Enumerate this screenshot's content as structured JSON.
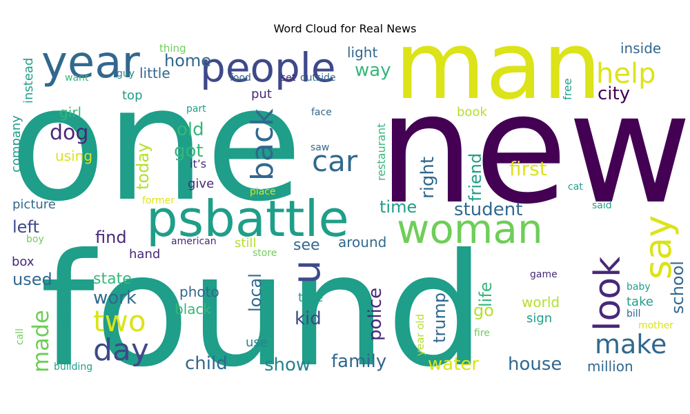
{
  "chart_data": {
    "type": "wordcloud",
    "title": "Word Cloud for Real News",
    "colors": {
      "purple_dark": "#440154",
      "purple": "#482878",
      "indigo": "#3e4989",
      "blue": "#31688e",
      "teal_blue": "#26828e",
      "teal": "#1f9e89",
      "green": "#35b779",
      "light_green": "#6ece58",
      "yellow_green": "#b5de2b",
      "yellow": "#dce319"
    },
    "words": [
      {
        "text": "one",
        "weight": 100,
        "color": "teal",
        "vertical": false
      },
      {
        "text": "found",
        "weight": 95,
        "color": "teal",
        "vertical": false
      },
      {
        "text": "new",
        "weight": 90,
        "color": "purple_dark",
        "vertical": false
      },
      {
        "text": "man",
        "weight": 85,
        "color": "yellow",
        "vertical": false
      },
      {
        "text": "psbattle",
        "weight": 55,
        "color": "teal",
        "vertical": false
      },
      {
        "text": "people",
        "weight": 45,
        "color": "indigo",
        "vertical": false
      },
      {
        "text": "year",
        "weight": 45,
        "color": "blue",
        "vertical": false
      },
      {
        "text": "woman",
        "weight": 42,
        "color": "light_green",
        "vertical": false
      },
      {
        "text": "u",
        "weight": 40,
        "color": "indigo",
        "vertical": true
      },
      {
        "text": "say",
        "weight": 40,
        "color": "yellow",
        "vertical": true
      },
      {
        "text": "look",
        "weight": 38,
        "color": "purple",
        "vertical": true
      },
      {
        "text": "back",
        "weight": 35,
        "color": "blue",
        "vertical": true
      },
      {
        "text": "day",
        "weight": 34,
        "color": "indigo",
        "vertical": false
      },
      {
        "text": "help",
        "weight": 33,
        "color": "yellow",
        "vertical": false
      },
      {
        "text": "two",
        "weight": 32,
        "color": "yellow",
        "vertical": false
      },
      {
        "text": "make",
        "weight": 32,
        "color": "blue",
        "vertical": false
      },
      {
        "text": "car",
        "weight": 30,
        "color": "blue",
        "vertical": false
      },
      {
        "text": "made",
        "weight": 28,
        "color": "light_green",
        "vertical": true
      },
      {
        "text": "dog",
        "weight": 25,
        "color": "purple",
        "vertical": false
      },
      {
        "text": "city",
        "weight": 22,
        "color": "purple_dark",
        "vertical": false
      },
      {
        "text": "school",
        "weight": 20,
        "color": "blue",
        "vertical": true
      },
      {
        "text": "first",
        "weight": 20,
        "color": "yellow",
        "vertical": false
      },
      {
        "text": "family",
        "weight": 20,
        "color": "blue",
        "vertical": false
      },
      {
        "text": "police",
        "weight": 20,
        "color": "purple",
        "vertical": true
      },
      {
        "text": "work",
        "weight": 20,
        "color": "blue",
        "vertical": false
      },
      {
        "text": "child",
        "weight": 20,
        "color": "blue",
        "vertical": false
      },
      {
        "text": "house",
        "weight": 20,
        "color": "blue",
        "vertical": false
      },
      {
        "text": "local",
        "weight": 20,
        "color": "blue",
        "vertical": true
      },
      {
        "text": "old",
        "weight": 20,
        "color": "green",
        "vertical": false
      },
      {
        "text": "home",
        "weight": 20,
        "color": "blue",
        "vertical": false
      },
      {
        "text": "way",
        "weight": 20,
        "color": "green",
        "vertical": false
      },
      {
        "text": "got",
        "weight": 20,
        "color": "green",
        "vertical": false
      },
      {
        "text": "student",
        "weight": 20,
        "color": "blue",
        "vertical": false
      },
      {
        "text": "water",
        "weight": 20,
        "color": "yellow",
        "vertical": false
      },
      {
        "text": "show",
        "weight": 20,
        "color": "teal_blue",
        "vertical": false
      },
      {
        "text": "kid",
        "weight": 20,
        "color": "indigo",
        "vertical": false
      },
      {
        "text": "life",
        "weight": 20,
        "color": "green",
        "vertical": true
      },
      {
        "text": "right",
        "weight": 20,
        "color": "blue",
        "vertical": true
      },
      {
        "text": "friend",
        "weight": 20,
        "color": "teal",
        "vertical": true
      },
      {
        "text": "time",
        "weight": 20,
        "color": "teal",
        "vertical": false
      },
      {
        "text": "today",
        "weight": 18,
        "color": "yellow_green",
        "vertical": true
      },
      {
        "text": "find",
        "weight": 18,
        "color": "purple",
        "vertical": false
      },
      {
        "text": "left",
        "weight": 18,
        "color": "indigo",
        "vertical": false
      },
      {
        "text": "used",
        "weight": 18,
        "color": "blue",
        "vertical": false
      },
      {
        "text": "state",
        "weight": 18,
        "color": "green",
        "vertical": false
      },
      {
        "text": "see",
        "weight": 18,
        "color": "blue",
        "vertical": false
      },
      {
        "text": "trump",
        "weight": 18,
        "color": "blue",
        "vertical": true
      },
      {
        "text": "go",
        "weight": 18,
        "color": "yellow_green",
        "vertical": false
      },
      {
        "text": "world",
        "weight": 16,
        "color": "yellow_green",
        "vertical": false
      },
      {
        "text": "light",
        "weight": 16,
        "color": "blue",
        "vertical": false
      },
      {
        "text": "little",
        "weight": 16,
        "color": "blue",
        "vertical": false
      },
      {
        "text": "photo",
        "weight": 16,
        "color": "blue",
        "vertical": false
      },
      {
        "text": "black",
        "weight": 16,
        "color": "green",
        "vertical": false
      },
      {
        "text": "around",
        "weight": 16,
        "color": "blue",
        "vertical": false
      },
      {
        "text": "million",
        "weight": 16,
        "color": "blue",
        "vertical": false
      },
      {
        "text": "inside",
        "weight": 16,
        "color": "blue",
        "vertical": false
      },
      {
        "text": "girl",
        "weight": 14,
        "color": "green",
        "vertical": false
      },
      {
        "text": "picture",
        "weight": 14,
        "color": "blue",
        "vertical": false
      },
      {
        "text": "box",
        "weight": 14,
        "color": "purple",
        "vertical": false
      },
      {
        "text": "top",
        "weight": 14,
        "color": "teal",
        "vertical": false
      },
      {
        "text": "book",
        "weight": 14,
        "color": "yellow_green",
        "vertical": false
      },
      {
        "text": "put",
        "weight": 14,
        "color": "purple",
        "vertical": false
      },
      {
        "text": "using",
        "weight": 14,
        "color": "yellow",
        "vertical": false
      },
      {
        "text": "give",
        "weight": 14,
        "color": "purple",
        "vertical": false
      },
      {
        "text": "still",
        "weight": 14,
        "color": "yellow_green",
        "vertical": false
      },
      {
        "text": "hand",
        "weight": 14,
        "color": "purple",
        "vertical": false
      },
      {
        "text": "sign",
        "weight": 14,
        "color": "teal",
        "vertical": false
      },
      {
        "text": "take",
        "weight": 14,
        "color": "teal",
        "vertical": false
      },
      {
        "text": "company",
        "weight": 14,
        "color": "teal",
        "vertical": true
      },
      {
        "text": "instead",
        "weight": 14,
        "color": "teal",
        "vertical": true
      },
      {
        "text": "restaurant",
        "weight": 14,
        "color": "green",
        "vertical": true
      },
      {
        "text": "tree",
        "weight": 14,
        "color": "teal",
        "vertical": false
      },
      {
        "text": "use",
        "weight": 14,
        "color": "teal_blue",
        "vertical": false
      },
      {
        "text": "yearold",
        "weight": 13,
        "color": "teal",
        "vertical": true
      },
      {
        "text": "year old",
        "weight": 13,
        "color": "yellow_green",
        "vertical": true
      },
      {
        "text": "free",
        "weight": 13,
        "color": "teal",
        "vertical": true
      },
      {
        "text": "it’s",
        "weight": 13,
        "color": "purple",
        "vertical": false
      },
      {
        "text": "thing",
        "weight": 12,
        "color": "light_green",
        "vertical": false
      },
      {
        "text": "want",
        "weight": 11,
        "color": "green",
        "vertical": false
      },
      {
        "text": "guy",
        "weight": 11,
        "color": "teal_blue",
        "vertical": false
      },
      {
        "text": "food",
        "weight": 11,
        "color": "blue",
        "vertical": false
      },
      {
        "text": "set",
        "weight": 11,
        "color": "purple",
        "vertical": false
      },
      {
        "text": "outside",
        "weight": 11,
        "color": "blue",
        "vertical": false
      },
      {
        "text": "part",
        "weight": 11,
        "color": "teal",
        "vertical": false
      },
      {
        "text": "face",
        "weight": 11,
        "color": "blue",
        "vertical": false
      },
      {
        "text": "saw",
        "weight": 11,
        "color": "blue",
        "vertical": false
      },
      {
        "text": "place",
        "weight": 11,
        "color": "yellow",
        "vertical": false
      },
      {
        "text": "former",
        "weight": 11,
        "color": "yellow",
        "vertical": false
      },
      {
        "text": "cat",
        "weight": 11,
        "color": "teal",
        "vertical": false
      },
      {
        "text": "said",
        "weight": 11,
        "color": "teal",
        "vertical": false
      },
      {
        "text": "boy",
        "weight": 11,
        "color": "light_green",
        "vertical": false
      },
      {
        "text": "american",
        "weight": 11,
        "color": "purple",
        "vertical": false
      },
      {
        "text": "store",
        "weight": 11,
        "color": "light_green",
        "vertical": false
      },
      {
        "text": "game",
        "weight": 11,
        "color": "purple",
        "vertical": false
      },
      {
        "text": "baby",
        "weight": 11,
        "color": "teal",
        "vertical": false
      },
      {
        "text": "bill",
        "weight": 11,
        "color": "blue",
        "vertical": false
      },
      {
        "text": "mother",
        "weight": 11,
        "color": "yellow",
        "vertical": false
      },
      {
        "text": "call",
        "weight": 11,
        "color": "light_green",
        "vertical": true
      },
      {
        "text": "fire",
        "weight": 11,
        "color": "light_green",
        "vertical": false
      },
      {
        "text": "building",
        "weight": 11,
        "color": "teal",
        "vertical": false
      }
    ]
  }
}
